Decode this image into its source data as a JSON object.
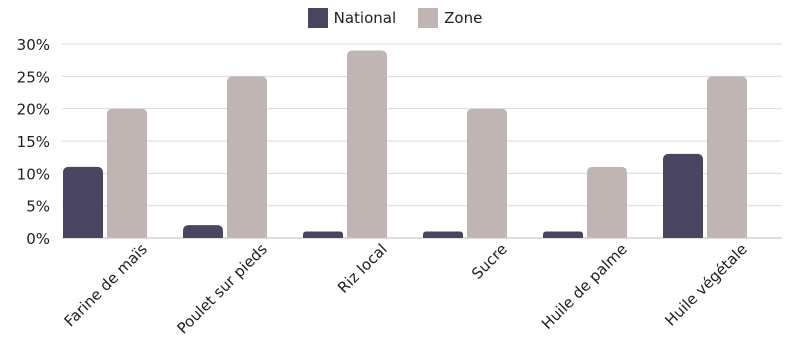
{
  "chart_data": {
    "type": "bar",
    "categories": [
      "Farine de maïs",
      "Poulet sur pieds",
      "Riz local",
      "Sucre",
      "Huile de palme",
      "Huile végétale"
    ],
    "series": [
      {
        "name": "National",
        "color": "#4a4560",
        "values": [
          11,
          2,
          1,
          1,
          1,
          13
        ]
      },
      {
        "name": "Zone",
        "color": "#c1b5b3",
        "values": [
          20,
          25,
          29,
          20,
          11,
          25
        ]
      }
    ],
    "ylim": [
      0,
      30
    ],
    "yticks": [
      "0%",
      "5%",
      "10%",
      "15%",
      "20%",
      "25%",
      "30%"
    ],
    "grid": true,
    "legend": "top-center",
    "title": "",
    "xlabel": "",
    "ylabel": ""
  }
}
